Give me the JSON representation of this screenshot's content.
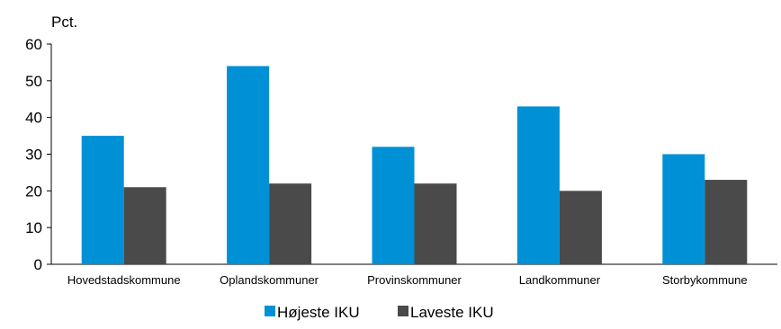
{
  "chart_data": {
    "type": "bar",
    "title": "",
    "ylabel": "Pct.",
    "xlabel": "",
    "categories": [
      "Hovedstadskommune",
      "Oplandskommuner",
      "Provinskommuner",
      "Landkommuner",
      "Storbykommune"
    ],
    "series": [
      {
        "name": "Højeste IKU",
        "color": "#0090D6",
        "values": [
          35,
          54,
          32,
          43,
          30
        ]
      },
      {
        "name": "Laveste IKU",
        "color": "#4A4A4A",
        "values": [
          21,
          22,
          22,
          20,
          23
        ]
      }
    ],
    "ylim": [
      0,
      60
    ],
    "yticks": [
      "0",
      "10",
      "20",
      "30",
      "40",
      "50",
      "60"
    ],
    "grid": false,
    "legend_position": "bottom"
  }
}
